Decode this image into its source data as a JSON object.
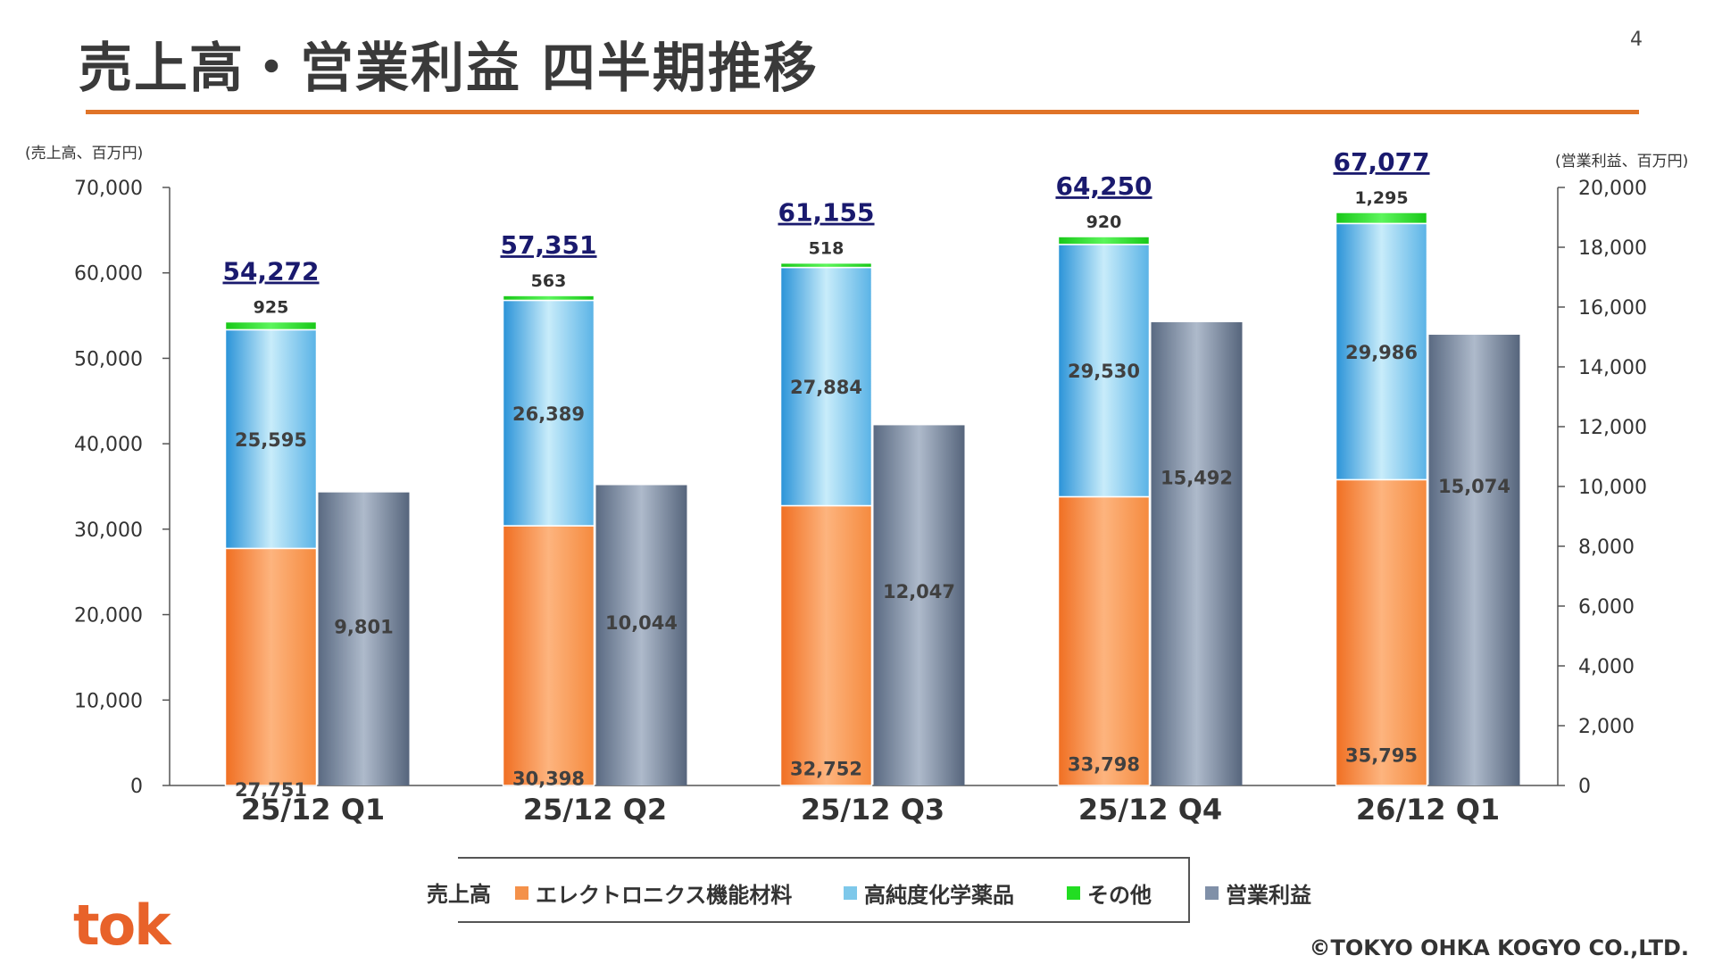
{
  "page": {
    "title": "売上高・営業利益 四半期推移",
    "page_number": "4",
    "copyright": "©TOKYO OHKA KOGYO CO.,LTD.",
    "logo_text": "tok"
  },
  "legend": {
    "prefix": "売上高",
    "items": [
      {
        "label": "エレクトロニクス機能材料",
        "color": "#f4914a"
      },
      {
        "label": "高純度化学薬品",
        "color": "#7ec8ea"
      },
      {
        "label": "その他",
        "color": "#22dd22"
      },
      {
        "label": "営業利益",
        "color": "#8090a8"
      }
    ]
  },
  "chart_data": {
    "type": "bar",
    "categories": [
      "25/12 Q1",
      "25/12 Q2",
      "25/12 Q3",
      "25/12 Q4",
      "26/12 Q1"
    ],
    "left_axis": {
      "label": "(売上高、百万円)",
      "ylim": [
        0,
        70000
      ],
      "ticks": [
        "0",
        "10,000",
        "20,000",
        "30,000",
        "40,000",
        "50,000",
        "60,000",
        "70,000"
      ]
    },
    "right_axis": {
      "label": "(営業利益、百万円)",
      "ylim": [
        0,
        20000
      ],
      "ticks": [
        "0",
        "2,000",
        "4,000",
        "6,000",
        "8,000",
        "10,000",
        "12,000",
        "14,000",
        "16,000",
        "18,000",
        "20,000"
      ]
    },
    "series": [
      {
        "name": "エレクトロニクス機能材料",
        "axis": "left",
        "stack": "sales",
        "color": "#f4914a",
        "values": [
          27751,
          30398,
          32752,
          33798,
          35795
        ],
        "labels": [
          "27,751",
          "30,398",
          "32,752",
          "33,798",
          "35,795"
        ]
      },
      {
        "name": "高純度化学薬品",
        "axis": "left",
        "stack": "sales",
        "color": "#7ec8ea",
        "values": [
          25595,
          26389,
          27884,
          29530,
          29986
        ],
        "labels": [
          "25,595",
          "26,389",
          "27,884",
          "29,530",
          "29,986"
        ]
      },
      {
        "name": "その他",
        "axis": "left",
        "stack": "sales",
        "color": "#22dd22",
        "values": [
          925,
          563,
          518,
          920,
          1295
        ],
        "labels": [
          "925",
          "563",
          "518",
          "920",
          "1,295"
        ]
      },
      {
        "name": "営業利益",
        "axis": "right",
        "stack": "profit",
        "color": "#8090a8",
        "values": [
          9801,
          10044,
          12047,
          15492,
          15074
        ],
        "labels": [
          "9,801",
          "10,044",
          "12,047",
          "15,492",
          "15,074"
        ]
      }
    ],
    "totals": {
      "values": [
        54272,
        57351,
        61155,
        64250,
        67077
      ],
      "labels": [
        "54,272",
        "57,351",
        "61,155",
        "64,250",
        "67,077"
      ]
    },
    "grid": false,
    "legend_position": "bottom"
  }
}
